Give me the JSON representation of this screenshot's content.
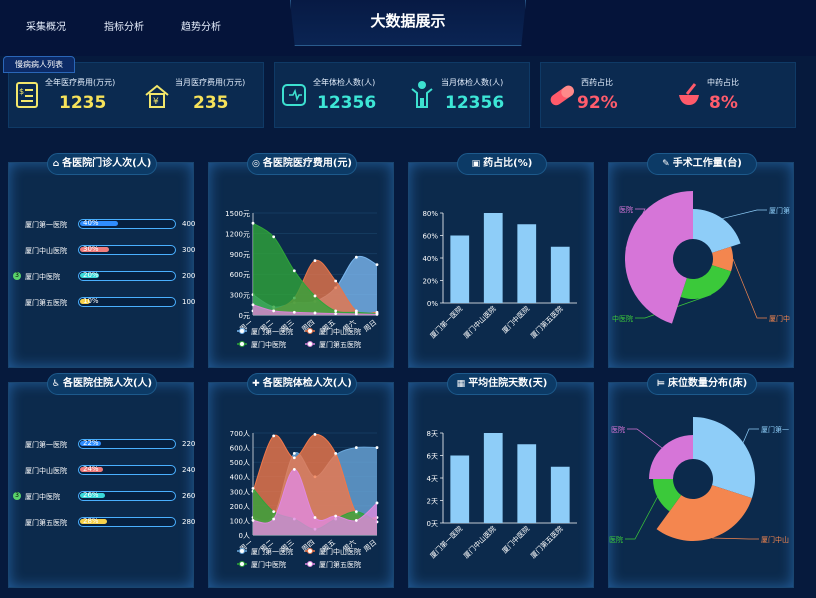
{
  "nav": {
    "items": [
      "采集概况",
      "指标分析",
      "趋势分析"
    ]
  },
  "header": {
    "title": "大数据展示",
    "chronic_button": "慢病病人列表"
  },
  "summary": {
    "total_cost_label": "全年医疗费用(万元)",
    "total_cost_value": "1235",
    "month_cost_label": "当月医疗费用(万元)",
    "month_cost_value": "235",
    "total_exam_label": "全年体检人数(人)",
    "total_exam_value": "12356",
    "month_exam_label": "当月体检人数(人)",
    "month_exam_value": "12356",
    "western_label": "西药占比",
    "western_value": "92%",
    "chinese_label": "中药占比",
    "chinese_value": "8%"
  },
  "panels": {
    "outpatient": {
      "title": "各医院门诊人次(人)",
      "rows": [
        {
          "name": "厦门第一医院",
          "pct": "40%",
          "pct_value": 40,
          "value": "400",
          "color": "#2f8dff"
        },
        {
          "name": "厦门中山医院",
          "pct": "30%",
          "pct_value": 30,
          "value": "300",
          "color": "#f07d7d"
        },
        {
          "name": "厦门中医院",
          "pct": "20%",
          "pct_value": 20,
          "value": "200",
          "color": "#3ad8d8",
          "rank": "3"
        },
        {
          "name": "厦门第五医院",
          "pct": "10%",
          "pct_value": 10,
          "value": "100",
          "color": "#f6d14a"
        }
      ]
    },
    "inpatient": {
      "title": "各医院住院人次(人)",
      "rows": [
        {
          "name": "厦门第一医院",
          "pct": "22%",
          "pct_value": 22,
          "value": "220",
          "color": "#2f8dff"
        },
        {
          "name": "厦门中山医院",
          "pct": "24%",
          "pct_value": 24,
          "value": "240",
          "color": "#f07d7d"
        },
        {
          "name": "厦门中医院",
          "pct": "26%",
          "pct_value": 26,
          "value": "260",
          "color": "#3ad8d8",
          "rank": "3"
        },
        {
          "name": "厦门第五医院",
          "pct": "28%",
          "pct_value": 28,
          "value": "280",
          "color": "#f6d14a"
        }
      ]
    },
    "cost": {
      "title": "各医院医疗费用(元)"
    },
    "drug": {
      "title": "药占比(%)"
    },
    "surgery": {
      "title": "手术工作量(台)"
    },
    "exam": {
      "title": "各医院体检人次(人)"
    },
    "stay": {
      "title": "平均住院天数(天)"
    },
    "bed": {
      "title": "床位数量分布(床)"
    }
  },
  "chart_data": [
    {
      "type": "area",
      "title": "各医院医疗费用(元)",
      "x": [
        "周一",
        "周二",
        "周三",
        "周四",
        "周五",
        "周六",
        "周日"
      ],
      "y_ticks": [
        "0元",
        "300元",
        "600元",
        "900元",
        "1200元",
        "1500元"
      ],
      "ylim": [
        0,
        1500
      ],
      "series": [
        {
          "name": "厦门第一医院",
          "values": [
            300,
            120,
            180,
            200,
            400,
            850,
            740
          ],
          "color": "#7ab7ef"
        },
        {
          "name": "厦门中山医院",
          "values": [
            60,
            80,
            250,
            800,
            500,
            60,
            40
          ],
          "color": "#e8764a"
        },
        {
          "name": "厦门中医院",
          "values": [
            1350,
            1150,
            650,
            280,
            60,
            40,
            20
          ],
          "color": "#2fa53a"
        },
        {
          "name": "厦门第五医院",
          "values": [
            150,
            60,
            40,
            30,
            20,
            15,
            10
          ],
          "color": "#d785d6"
        }
      ]
    },
    {
      "type": "bar",
      "title": "药占比(%)",
      "categories": [
        "厦门第一医院",
        "厦门中山医院",
        "厦门中医院",
        "厦门第五医院"
      ],
      "values": [
        60,
        80,
        70,
        50
      ],
      "y_ticks": [
        "0%",
        "20%",
        "40%",
        "60%",
        "80%"
      ],
      "ylim": [
        0,
        80
      ],
      "color": "#8ecdf8"
    },
    {
      "type": "pie",
      "title": "手术工作量(台)",
      "labels": [
        "厦门第一医院",
        "厦门中山医院",
        "厦门中医院",
        "厦门第五医院"
      ],
      "values": [
        20,
        10,
        25,
        45
      ],
      "label_texts": [
        "厦门第",
        "厦门中",
        "中医院",
        "医院"
      ],
      "colors": [
        "#8ecdf8",
        "#f4864f",
        "#3bc93a",
        "#d675d8"
      ]
    },
    {
      "type": "area",
      "title": "各医院体检人次(人)",
      "x": [
        "周一",
        "周二",
        "周三",
        "周四",
        "周五",
        "周六",
        "周日"
      ],
      "y_ticks": [
        "0人",
        "100人",
        "200人",
        "300人",
        "400人",
        "500人",
        "600人",
        "700人"
      ],
      "ylim": [
        0,
        700
      ],
      "series": [
        {
          "name": "厦门第一医院",
          "values": [
            120,
            130,
            560,
            400,
            550,
            600,
            600
          ],
          "color": "#6aa6d9"
        },
        {
          "name": "厦门中山医院",
          "values": [
            300,
            680,
            530,
            690,
            560,
            150,
            120
          ],
          "color": "#f0784a"
        },
        {
          "name": "厦门中医院",
          "values": [
            320,
            160,
            110,
            40,
            110,
            160,
            90
          ],
          "color": "#2fa53a"
        },
        {
          "name": "厦门第五医院",
          "values": [
            100,
            110,
            450,
            120,
            130,
            100,
            220
          ],
          "color": "#e089e0"
        }
      ]
    },
    {
      "type": "bar",
      "title": "平均住院天数(天)",
      "categories": [
        "厦门第一医院",
        "厦门中山医院",
        "厦门中医院",
        "厦门第五医院"
      ],
      "values": [
        6,
        8,
        7,
        5
      ],
      "y_ticks": [
        "0天",
        "2天",
        "4天",
        "6天",
        "8天"
      ],
      "ylim": [
        0,
        8
      ],
      "color": "#8ecdf8"
    },
    {
      "type": "pie",
      "title": "床位数量分布(床)",
      "labels": [
        "厦门第一医院",
        "厦门中山医院",
        "厦门中医院",
        "厦门第五医院"
      ],
      "values": [
        30,
        30,
        15,
        25
      ],
      "label_texts": [
        "厦门第一",
        "厦门中山",
        "医院",
        "医院"
      ],
      "colors": [
        "#8ecdf8",
        "#f4864f",
        "#3bc93a",
        "#d675d8"
      ]
    }
  ]
}
